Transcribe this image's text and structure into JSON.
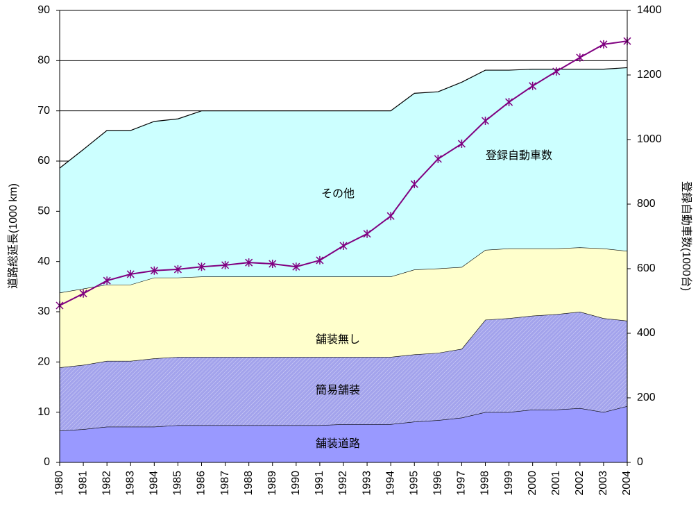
{
  "chart_data": {
    "type": "area",
    "stacked": true,
    "ylabel": "道路総延長(1000 km)",
    "y2label": "登録自動車数(1000台)",
    "categories": [
      "1980",
      "1981",
      "1982",
      "1983",
      "1984",
      "1985",
      "1986",
      "1987",
      "1988",
      "1989",
      "1990",
      "1991",
      "1992",
      "1993",
      "1994",
      "1995",
      "1996",
      "1997",
      "1998",
      "1999",
      "2000",
      "2001",
      "2002",
      "2003",
      "2004"
    ],
    "series": [
      {
        "name": "舗装道路",
        "color": "#9999ff",
        "values": [
          6.3,
          6.6,
          7.1,
          7.1,
          7.1,
          7.4,
          7.4,
          7.4,
          7.4,
          7.4,
          7.4,
          7.4,
          7.6,
          7.6,
          7.6,
          8.1,
          8.4,
          8.9,
          10.0,
          10.0,
          10.5,
          10.5,
          10.8,
          10.0,
          11.2
        ]
      },
      {
        "name": "簡易舗装",
        "color": "#a3a3ec",
        "pattern": "hatch",
        "values": [
          12.6,
          12.8,
          13.1,
          13.1,
          13.6,
          13.6,
          13.6,
          13.6,
          13.6,
          13.6,
          13.6,
          13.6,
          13.4,
          13.4,
          13.4,
          13.4,
          13.4,
          13.7,
          18.4,
          18.7,
          18.7,
          19.0,
          19.2,
          18.7,
          17.0
        ]
      },
      {
        "name": "舗装無し",
        "color": "#ffffcc",
        "values": [
          14.9,
          15.2,
          15.2,
          15.2,
          16.1,
          15.8,
          16.0,
          16.0,
          16.0,
          16.0,
          16.0,
          16.0,
          16.0,
          16.0,
          16.0,
          16.9,
          16.8,
          16.3,
          13.9,
          13.9,
          13.4,
          13.1,
          12.8,
          13.9,
          13.9
        ]
      },
      {
        "name": "その他",
        "color": "#ccffff",
        "values": [
          24.8,
          27.7,
          30.7,
          30.7,
          31.1,
          31.6,
          33.0,
          33.0,
          33.0,
          33.0,
          33.0,
          33.0,
          33.0,
          33.0,
          33.0,
          35.1,
          35.2,
          36.8,
          35.8,
          35.5,
          35.7,
          35.7,
          35.5,
          35.7,
          36.5
        ]
      },
      {
        "name": "登録自動車数",
        "type": "line",
        "axis": "y2",
        "marker": "asterisk",
        "color": "#800080",
        "values": [
          486,
          523,
          563,
          583,
          594,
          598,
          606,
          611,
          619,
          615,
          606,
          626,
          671,
          708,
          763,
          862,
          940,
          987,
          1058,
          1116,
          1166,
          1211,
          1254,
          1295,
          1305
        ]
      }
    ],
    "ylim": [
      0,
      90
    ],
    "yticks": [
      0,
      10,
      20,
      30,
      40,
      50,
      60,
      70,
      80,
      90
    ],
    "y2lim": [
      0,
      1400
    ],
    "y2ticks": [
      0,
      200,
      400,
      600,
      800,
      1000,
      1200,
      1400
    ],
    "grid": true
  }
}
